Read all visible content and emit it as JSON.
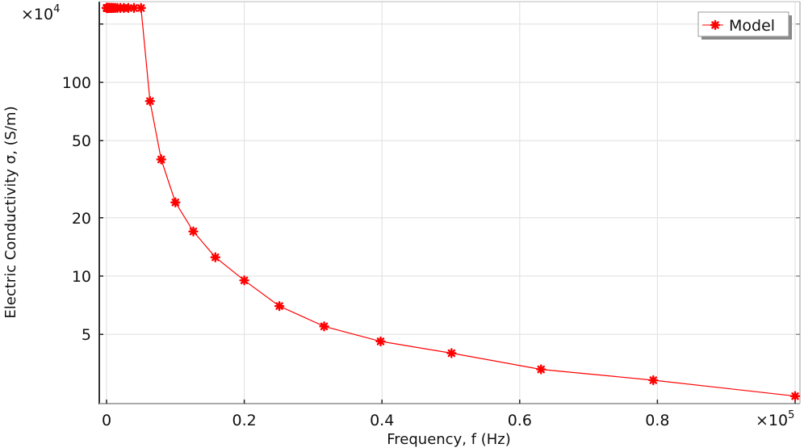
{
  "chart_data": {
    "type": "line",
    "title": "",
    "xlabel": "Frequency, f (Hz)",
    "ylabel": "Electric Conductivity σ, (S/m)",
    "x_multiplier": "×10",
    "x_multiplier_exp": "5",
    "y_multiplier": "×10",
    "y_multiplier_exp": "4",
    "xscale": "linear",
    "yscale": "log",
    "xlim": [
      -0.01,
      1.006
    ],
    "ylim": [
      2.2,
      258
    ],
    "xticks": [
      0,
      0.2,
      0.4,
      0.6,
      0.8,
      1.0
    ],
    "xtick_labels": [
      "0",
      "0.2",
      "0.4",
      "0.6",
      "0.8",
      ""
    ],
    "yticks": [
      5,
      10,
      20,
      50,
      100
    ],
    "ytick_labels": [
      "5",
      "10",
      "20",
      "50",
      "100"
    ],
    "ygrid_extra": [
      200
    ],
    "grid": true,
    "legend_position": "upper right",
    "series": [
      {
        "name": "Model",
        "color": "#ff0000",
        "marker": "asterisk",
        "x": [
          0.0001,
          0.000126,
          0.000158,
          0.0002,
          0.000251,
          0.000316,
          0.000398,
          0.000501,
          0.000631,
          0.000794,
          0.001,
          0.00126,
          0.00158,
          0.002,
          0.00251,
          0.00316,
          0.00398,
          0.00501,
          0.00631,
          0.00794,
          0.01,
          0.0126,
          0.0158,
          0.02,
          0.0251,
          0.0316,
          0.0398,
          0.0501,
          0.0631,
          0.0794,
          0.1,
          0.126,
          0.158,
          0.2,
          0.251,
          0.316,
          0.398,
          0.501,
          0.631,
          0.794,
          1.0
        ],
        "y": [
          242,
          242,
          242,
          242,
          242,
          242,
          242,
          242,
          242,
          242,
          242,
          242,
          242,
          242,
          242,
          242,
          242,
          242,
          242,
          242,
          242,
          242,
          242,
          242,
          242,
          242,
          242,
          242,
          80,
          40,
          24,
          17,
          12.5,
          9.5,
          7.0,
          5.5,
          4.6,
          4.0,
          3.3,
          2.9,
          2.4
        ]
      }
    ]
  },
  "legend": {
    "items": [
      {
        "label": "Model",
        "color": "#ff0000"
      }
    ]
  },
  "colors": {
    "series": "#ff0000",
    "grid": "#e4e4e4",
    "axis": "#333333"
  }
}
